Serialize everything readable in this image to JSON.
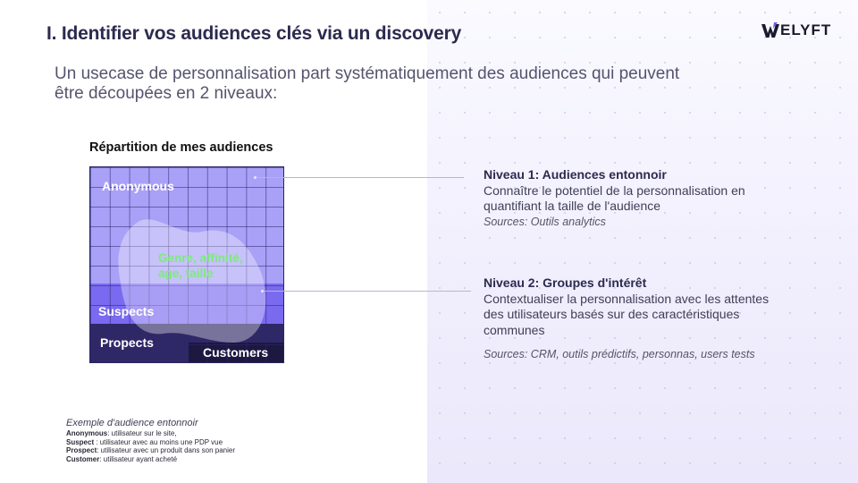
{
  "title": "I. Identifier vos audiences clés via un discovery",
  "logo": {
    "text": "ELYFT",
    "mark_letter": "W"
  },
  "subtitle": "Un usecase de personnalisation part systématiquement des audiences qui peuvent être découpées en 2 niveaux:",
  "chart": {
    "title": "Répartition de mes audiences",
    "zones": {
      "anonymous": "Anonymous",
      "suspects": "Suspects",
      "prospects": "Propects",
      "customers": "Customers"
    },
    "blob_label": "Genre, affinité, age, taille"
  },
  "levels": [
    {
      "title": "Niveau 1: Audiences entonnoir",
      "body": "Connaître le potentiel de la personnalisation en quantifiant la taille de l'audience",
      "sources": "Sources: Outils analytics"
    },
    {
      "title": "Niveau 2: Groupes d'intérêt",
      "body": "Contextualiser la personnalisation avec les attentes des utilisateurs basés sur des caractéristiques communes",
      "sources": "Sources: CRM, outils prédictifs, personnas, users tests"
    }
  ],
  "legend": {
    "title": "Exemple d'audience entonnoir",
    "rows": [
      {
        "term": "Anonymous",
        "def": ": utilisateur sur le site,"
      },
      {
        "term": "Suspect",
        "def": " : utilisateur avec au moins une PDP vue"
      },
      {
        "term": "Prospect",
        "def": ": utilisateur avec un produit dans son panier"
      },
      {
        "term": "Customer",
        "def": ": utilisateur ayant acheté"
      }
    ]
  },
  "colors": {
    "anonymous": "#a9a1f7",
    "suspects": "#7a6af0",
    "prospects": "#2f2866",
    "customers": "#1c1840",
    "blob_label": "#7dea7d"
  }
}
